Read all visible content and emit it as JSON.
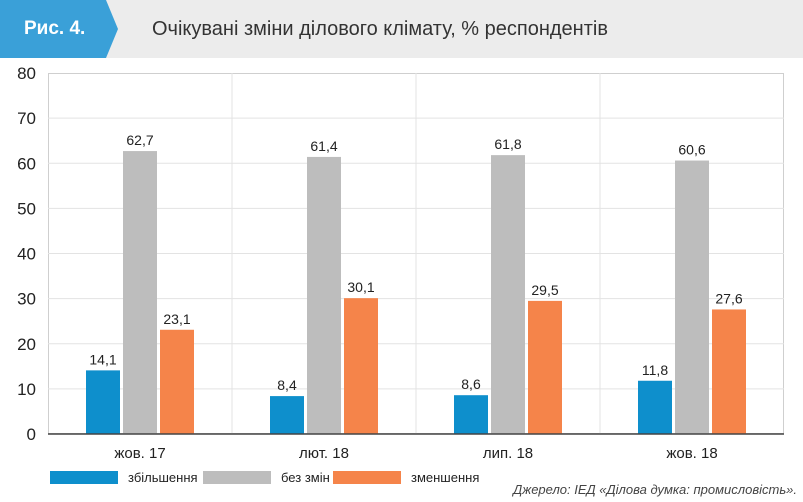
{
  "header": {
    "figure_label": "Рис. 4.",
    "title": "Очікувані зміни ділового клімату, % респондентів"
  },
  "colors": {
    "accent": "#3aa0d8",
    "increase": "#0e8fcc",
    "no_change": "#bdbdbd",
    "decrease": "#f5844a"
  },
  "chart_data": {
    "type": "bar",
    "categories": [
      "жов. 17",
      "лют. 18",
      "лип. 18",
      "жов. 18"
    ],
    "series": [
      {
        "name": "збільшення",
        "values": [
          14.1,
          8.4,
          8.6,
          11.8
        ],
        "labels": [
          "14,1",
          "8,4",
          "8,6",
          "11,8"
        ]
      },
      {
        "name": "без змін",
        "values": [
          62.7,
          61.4,
          61.8,
          60.6
        ],
        "labels": [
          "62,7",
          "61,4",
          "61,8",
          "60,6"
        ]
      },
      {
        "name": "зменшення",
        "values": [
          23.1,
          30.1,
          29.5,
          27.6
        ],
        "labels": [
          "23,1",
          "30,1",
          "29,5",
          "27,6"
        ]
      }
    ],
    "ylim": [
      0,
      80
    ],
    "yticks": [
      0,
      10,
      20,
      30,
      40,
      50,
      60,
      70,
      80
    ],
    "grid": true,
    "legend_position": "bottom-left"
  },
  "source": "Джерело: ІЕД «Ділова думка: промисловість»."
}
